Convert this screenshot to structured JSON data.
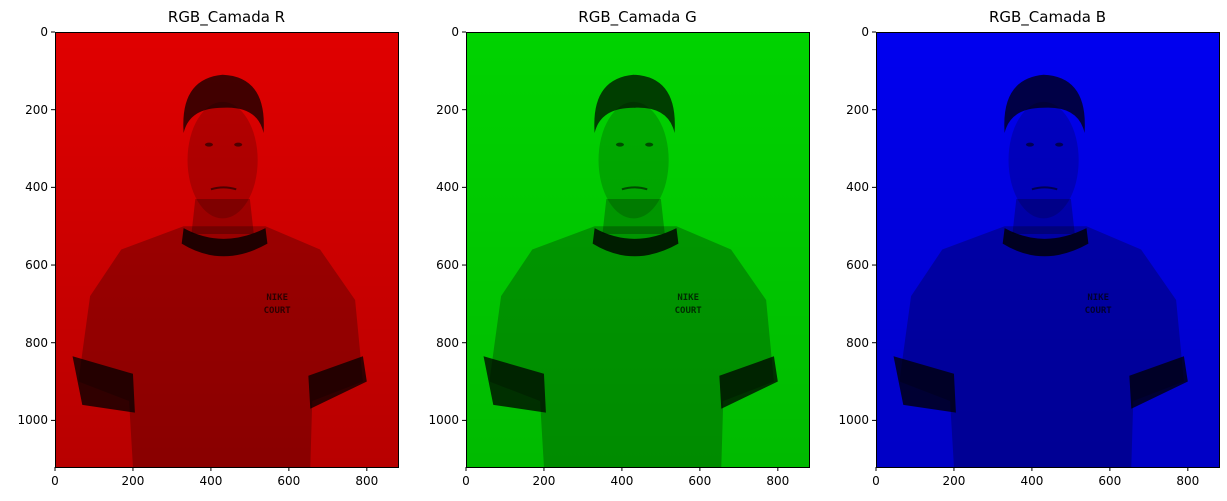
{
  "figure": {
    "panels": [
      {
        "title": "RGB_Camada R",
        "channel": "red",
        "color": "#e00000"
      },
      {
        "title": "RGB_Camada G",
        "channel": "green",
        "color": "#00d300"
      },
      {
        "title": "RGB_Camada B",
        "channel": "blue",
        "color": "#0000f0"
      }
    ],
    "image_shirt_text_1": "NIKE",
    "image_shirt_text_2": "COURT",
    "x_range": [
      0,
      880
    ],
    "y_range": [
      0,
      1120
    ],
    "x_ticks": [
      0,
      200,
      400,
      600,
      800
    ],
    "y_ticks": [
      0,
      200,
      400,
      600,
      800,
      1000
    ]
  }
}
